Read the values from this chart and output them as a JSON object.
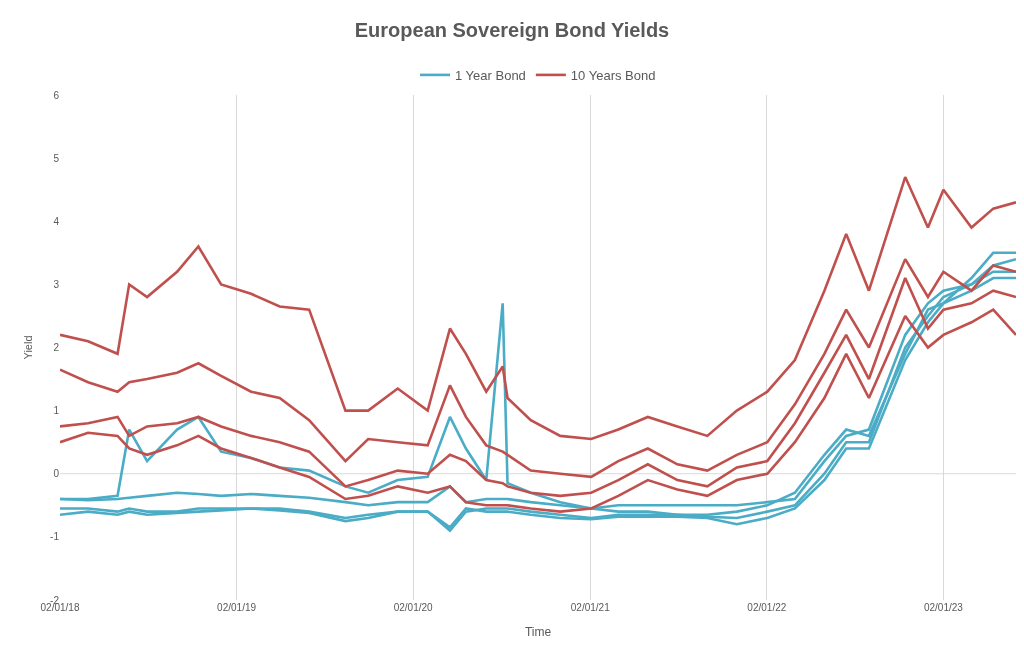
{
  "chart_data": {
    "type": "line",
    "title": "European Sovereign Bond Yields",
    "xlabel": "Time",
    "ylabel": "Yield",
    "x": [
      "2018-01-02",
      "2018-03-01",
      "2018-05-01",
      "2018-05-25",
      "2018-07-01",
      "2018-09-01",
      "2018-10-15",
      "2018-12-01",
      "2019-02-01",
      "2019-04-01",
      "2019-06-01",
      "2019-08-15",
      "2019-10-01",
      "2019-12-01",
      "2020-02-01",
      "2020-03-18",
      "2020-04-20",
      "2020-06-01",
      "2020-07-05",
      "2020-07-15",
      "2020-09-01",
      "2020-11-01",
      "2021-01-04",
      "2021-03-01",
      "2021-05-01",
      "2021-07-01",
      "2021-09-01",
      "2021-11-01",
      "2022-01-03",
      "2022-03-01",
      "2022-05-01",
      "2022-06-15",
      "2022-08-01",
      "2022-10-15",
      "2022-12-01",
      "2023-01-02",
      "2023-03-01",
      "2023-04-15",
      "2023-06-01"
    ],
    "series": [
      {
        "name": "1 Year Bond",
        "color": "#4bacc6",
        "values": [
          -0.4,
          -0.4,
          -0.35,
          0.7,
          0.2,
          0.7,
          0.9,
          0.35,
          0.25,
          0.1,
          0.05,
          -0.2,
          -0.3,
          -0.1,
          -0.05,
          0.9,
          0.4,
          -0.1,
          2.7,
          -0.15,
          -0.3,
          -0.45,
          -0.55,
          -0.6,
          -0.6,
          -0.65,
          -0.65,
          -0.6,
          -0.5,
          -0.3,
          0.3,
          0.7,
          0.6,
          1.9,
          2.6,
          2.7,
          3.1,
          3.5,
          3.5
        ]
      },
      {
        "color": "#4bacc6",
        "values": [
          -0.4,
          -0.42,
          -0.4,
          -0.38,
          -0.35,
          -0.3,
          -0.32,
          -0.35,
          -0.32,
          -0.35,
          -0.38,
          -0.45,
          -0.5,
          -0.45,
          -0.45,
          -0.2,
          -0.45,
          -0.4,
          -0.4,
          -0.4,
          -0.45,
          -0.5,
          -0.55,
          -0.5,
          -0.5,
          -0.5,
          -0.5,
          -0.5,
          -0.45,
          -0.4,
          0.2,
          0.6,
          0.7,
          2.2,
          2.7,
          2.9,
          3.0,
          3.3,
          3.4
        ]
      },
      {
        "color": "#4bacc6",
        "values": [
          -0.55,
          -0.55,
          -0.6,
          -0.55,
          -0.6,
          -0.6,
          -0.55,
          -0.55,
          -0.55,
          -0.55,
          -0.6,
          -0.7,
          -0.65,
          -0.6,
          -0.6,
          -0.9,
          -0.6,
          -0.55,
          -0.55,
          -0.55,
          -0.6,
          -0.65,
          -0.7,
          -0.65,
          -0.65,
          -0.65,
          -0.68,
          -0.7,
          -0.6,
          -0.5,
          0.0,
          0.5,
          0.5,
          2.0,
          2.5,
          2.8,
          3.0,
          3.2,
          3.2
        ]
      },
      {
        "color": "#4bacc6",
        "values": [
          -0.65,
          -0.6,
          -0.65,
          -0.6,
          -0.65,
          -0.62,
          -0.6,
          -0.58,
          -0.55,
          -0.58,
          -0.62,
          -0.75,
          -0.7,
          -0.6,
          -0.6,
          -0.85,
          -0.55,
          -0.6,
          -0.6,
          -0.6,
          -0.65,
          -0.7,
          -0.72,
          -0.68,
          -0.68,
          -0.68,
          -0.7,
          -0.8,
          -0.7,
          -0.55,
          -0.1,
          0.4,
          0.4,
          1.8,
          2.4,
          2.7,
          2.9,
          3.1,
          3.1
        ]
      },
      {
        "name": "10 Years Bond",
        "color": "#c0504d",
        "values": [
          2.2,
          2.1,
          1.9,
          3.0,
          2.8,
          3.2,
          3.6,
          3.0,
          2.85,
          2.65,
          2.6,
          1.0,
          1.0,
          1.35,
          1.0,
          2.3,
          1.9,
          1.3,
          1.7,
          1.2,
          0.85,
          0.6,
          0.55,
          0.7,
          0.9,
          0.75,
          0.6,
          1.0,
          1.3,
          1.8,
          2.9,
          3.8,
          2.9,
          4.7,
          3.9,
          4.5,
          3.9,
          4.2,
          4.3
        ]
      },
      {
        "color": "#c0504d",
        "values": [
          1.65,
          1.45,
          1.3,
          1.45,
          1.5,
          1.6,
          1.75,
          1.55,
          1.3,
          1.2,
          0.85,
          0.2,
          0.55,
          0.5,
          0.45,
          1.4,
          0.9,
          0.45,
          0.35,
          0.3,
          0.05,
          0.0,
          -0.05,
          0.2,
          0.4,
          0.15,
          0.05,
          0.3,
          0.5,
          1.1,
          1.9,
          2.6,
          2.0,
          3.4,
          2.8,
          3.2,
          2.9,
          3.3,
          3.2
        ]
      },
      {
        "color": "#c0504d",
        "values": [
          0.75,
          0.8,
          0.9,
          0.6,
          0.75,
          0.8,
          0.9,
          0.75,
          0.6,
          0.5,
          0.35,
          -0.2,
          -0.1,
          0.05,
          0.0,
          0.3,
          0.2,
          -0.1,
          -0.15,
          -0.2,
          -0.3,
          -0.35,
          -0.3,
          -0.1,
          0.15,
          -0.1,
          -0.2,
          0.1,
          0.2,
          0.8,
          1.6,
          2.2,
          1.5,
          3.1,
          2.3,
          2.6,
          2.7,
          2.9,
          2.8
        ]
      },
      {
        "color": "#c0504d",
        "values": [
          0.5,
          0.65,
          0.6,
          0.4,
          0.3,
          0.45,
          0.6,
          0.4,
          0.25,
          0.1,
          -0.05,
          -0.4,
          -0.35,
          -0.2,
          -0.3,
          -0.2,
          -0.45,
          -0.5,
          -0.5,
          -0.5,
          -0.55,
          -0.6,
          -0.55,
          -0.35,
          -0.1,
          -0.25,
          -0.35,
          -0.1,
          0.0,
          0.5,
          1.2,
          1.9,
          1.2,
          2.5,
          2.0,
          2.2,
          2.4,
          2.6,
          2.2
        ]
      }
    ],
    "xlim": [
      "2018-01-02",
      "2023-06-01"
    ],
    "xticks": [
      {
        "value": "2018-01-02",
        "label": "02/01/18"
      },
      {
        "value": "2019-01-02",
        "label": "02/01/19"
      },
      {
        "value": "2020-01-02",
        "label": "02/01/20"
      },
      {
        "value": "2021-01-02",
        "label": "02/01/21"
      },
      {
        "value": "2022-01-02",
        "label": "02/01/22"
      },
      {
        "value": "2023-01-02",
        "label": "02/01/23"
      }
    ],
    "ylim": [
      -2,
      6
    ],
    "yticks": [
      -2,
      -1,
      0,
      1,
      2,
      3,
      4,
      5,
      6
    ],
    "ref_lines": [
      {
        "axis": "y",
        "value": 0,
        "color": "#d9d9d9",
        "line_style": "solid"
      }
    ],
    "grid": "x",
    "legend": "top",
    "marker": "none",
    "line_style": "solid"
  }
}
